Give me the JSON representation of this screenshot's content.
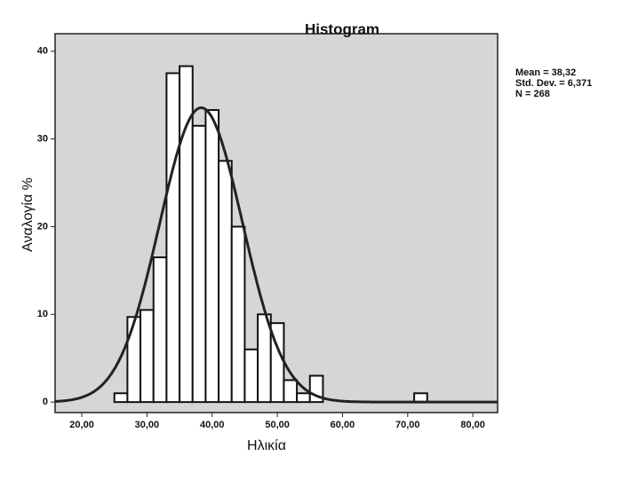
{
  "chart_data": {
    "type": "histogram",
    "title": "Histogram",
    "x_label": "Ηλικία",
    "y_label": "Αναλογία %",
    "bins": [
      25,
      27,
      29,
      31,
      33,
      35,
      37,
      39,
      41,
      43,
      45,
      47,
      49,
      51,
      53,
      55,
      57,
      59,
      61,
      63,
      65,
      67,
      69,
      71,
      73
    ],
    "values": [
      1,
      9.7,
      10.5,
      16.5,
      37.5,
      38.3,
      31.5,
      33.3,
      27.5,
      20,
      6,
      10,
      9,
      2.5,
      1,
      3,
      0,
      0,
      0,
      0,
      0,
      0,
      0,
      1
    ],
    "color": "#ffffff",
    "stats": [
      {
        "label": "Mean = 38,32",
        "value": 38.32
      },
      {
        "label": "Std. Dev. = 6,371",
        "value": 6.371
      },
      {
        "label": "N = 268",
        "value": 268
      }
    ],
    "xlim": [
      15.9,
      83.8
    ],
    "ylim": [
      -1.2,
      42
    ],
    "xticks": [
      {
        "value": 20,
        "label": "20,00"
      },
      {
        "value": 30,
        "label": "30,00"
      },
      {
        "value": 40,
        "label": "40,00"
      },
      {
        "value": 50,
        "label": "50,00"
      },
      {
        "value": 60,
        "label": "60,00"
      },
      {
        "value": 70,
        "label": "70,00"
      },
      {
        "value": 80,
        "label": "80,00"
      }
    ],
    "yticks": [
      0,
      10,
      20,
      30,
      40
    ]
  }
}
